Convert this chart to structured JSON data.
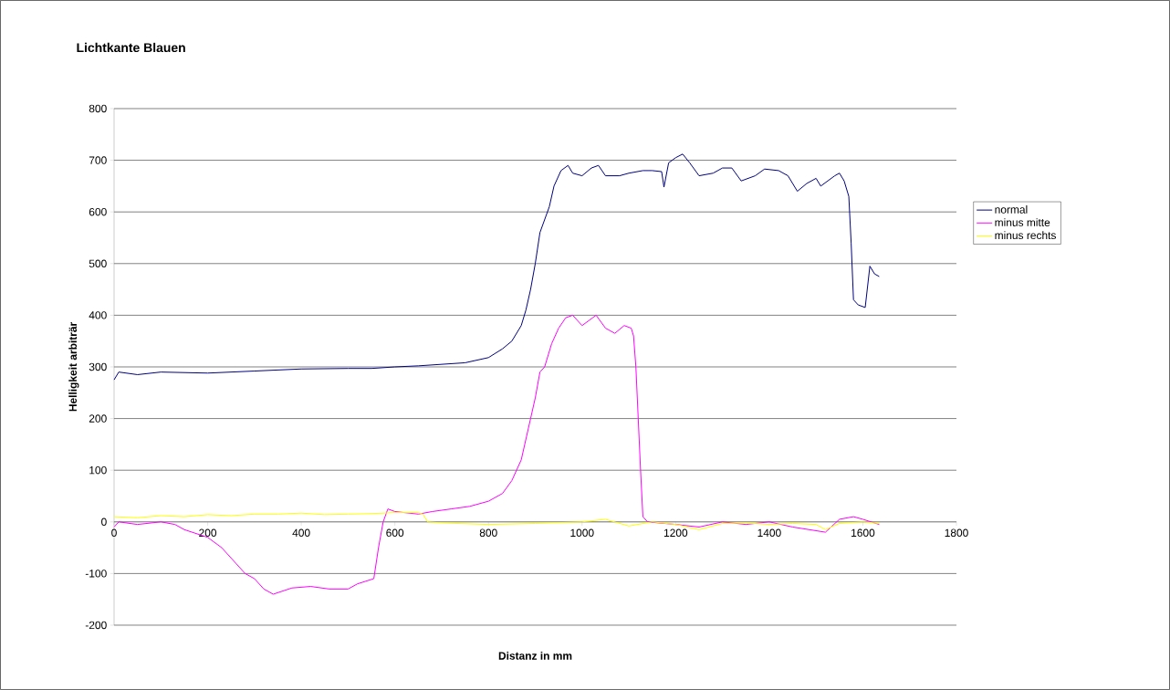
{
  "chart_data": {
    "type": "line",
    "title": "Lichtkante Blauen",
    "xlabel": "Distanz in mm",
    "ylabel": "Helligkeit  arbiträr",
    "xlim": [
      0,
      1800
    ],
    "ylim": [
      -200,
      800
    ],
    "xticks": [
      0,
      200,
      400,
      600,
      800,
      1000,
      1200,
      1400,
      1600,
      1800
    ],
    "yticks": [
      -200,
      -100,
      0,
      100,
      200,
      300,
      400,
      500,
      600,
      700,
      800
    ],
    "grid": "y",
    "legend": "right",
    "series": [
      {
        "name": "normal",
        "color": "#000080",
        "x": [
          0,
          10,
          50,
          100,
          200,
          300,
          400,
          500,
          550,
          600,
          650,
          700,
          750,
          800,
          830,
          850,
          870,
          880,
          890,
          900,
          910,
          920,
          930,
          940,
          955,
          970,
          980,
          1000,
          1020,
          1035,
          1050,
          1080,
          1100,
          1130,
          1150,
          1170,
          1175,
          1185,
          1200,
          1215,
          1230,
          1250,
          1280,
          1300,
          1320,
          1340,
          1370,
          1390,
          1420,
          1440,
          1460,
          1480,
          1500,
          1510,
          1540,
          1550,
          1560,
          1570,
          1575,
          1580,
          1590,
          1605,
          1615,
          1625,
          1635
        ],
        "values": [
          275,
          290,
          285,
          290,
          288,
          292,
          296,
          297,
          297,
          300,
          302,
          305,
          308,
          318,
          335,
          350,
          380,
          410,
          450,
          500,
          560,
          585,
          610,
          650,
          680,
          690,
          675,
          670,
          685,
          690,
          670,
          670,
          675,
          680,
          680,
          678,
          648,
          695,
          705,
          712,
          695,
          670,
          675,
          685,
          685,
          660,
          670,
          683,
          680,
          670,
          640,
          655,
          665,
          650,
          670,
          675,
          660,
          630,
          540,
          430,
          420,
          415,
          495,
          480,
          475
        ]
      },
      {
        "name": "minus mitte",
        "color": "#ff00ff",
        "x": [
          0,
          10,
          50,
          100,
          130,
          150,
          200,
          230,
          260,
          280,
          300,
          320,
          340,
          380,
          420,
          460,
          500,
          520,
          555,
          565,
          575,
          585,
          600,
          650,
          680,
          720,
          760,
          800,
          830,
          850,
          870,
          890,
          900,
          910,
          920,
          935,
          950,
          965,
          980,
          1000,
          1030,
          1050,
          1070,
          1090,
          1105,
          1110,
          1115,
          1120,
          1125,
          1130,
          1140,
          1200,
          1250,
          1300,
          1350,
          1400,
          1450,
          1520,
          1550,
          1580,
          1600,
          1635
        ],
        "values": [
          -10,
          0,
          -5,
          0,
          -5,
          -15,
          -30,
          -50,
          -80,
          -100,
          -110,
          -130,
          -140,
          -128,
          -125,
          -130,
          -130,
          -120,
          -110,
          -50,
          0,
          25,
          20,
          15,
          20,
          25,
          30,
          40,
          55,
          80,
          120,
          200,
          240,
          290,
          300,
          345,
          375,
          395,
          400,
          380,
          400,
          375,
          365,
          380,
          375,
          360,
          300,
          200,
          100,
          10,
          0,
          -5,
          -10,
          0,
          -5,
          0,
          -10,
          -20,
          5,
          10,
          5,
          -5
        ]
      },
      {
        "name": "minus rechts",
        "color": "#ffff00",
        "x": [
          0,
          50,
          100,
          150,
          200,
          250,
          300,
          350,
          400,
          450,
          500,
          550,
          600,
          650,
          660,
          670,
          700,
          800,
          900,
          1000,
          1050,
          1100,
          1150,
          1200,
          1250,
          1300,
          1350,
          1400,
          1450,
          1500,
          1520,
          1550,
          1600,
          1635
        ],
        "values": [
          10,
          8,
          12,
          10,
          14,
          12,
          15,
          15,
          17,
          14,
          15,
          16,
          18,
          18,
          15,
          0,
          -2,
          -5,
          -3,
          0,
          5,
          -8,
          0,
          -5,
          -15,
          -3,
          -2,
          -5,
          -3,
          -5,
          -15,
          -3,
          0,
          -3
        ]
      }
    ]
  }
}
